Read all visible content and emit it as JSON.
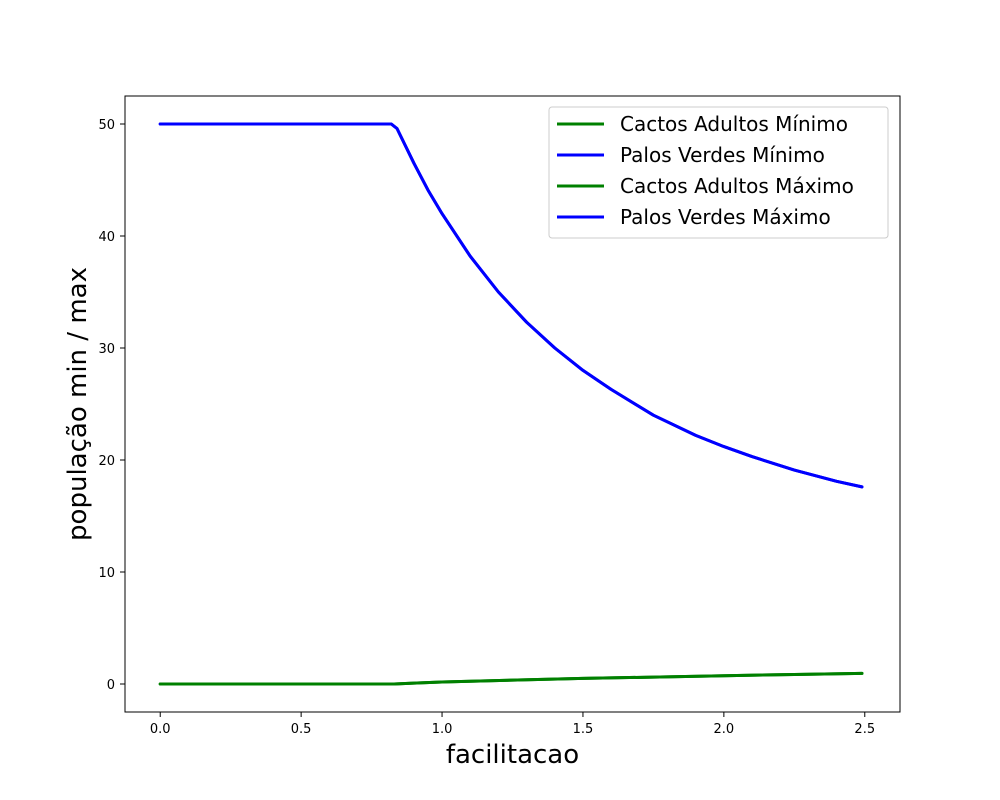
{
  "chart_data": {
    "type": "line",
    "title": "",
    "xlabel": "facilitacao",
    "ylabel": "população min / max",
    "xlim": [
      -0.125,
      2.625
    ],
    "ylim": [
      -2.5,
      52.5
    ],
    "xticks": [
      0.0,
      0.5,
      1.0,
      1.5,
      2.0,
      2.5
    ],
    "xtick_labels": [
      "0.0",
      "0.5",
      "1.0",
      "1.5",
      "2.0",
      "2.5"
    ],
    "yticks": [
      0,
      10,
      20,
      30,
      40,
      50
    ],
    "ytick_labels": [
      "0",
      "10",
      "20",
      "30",
      "40",
      "50"
    ],
    "grid": false,
    "legend_position": "upper right",
    "series": [
      {
        "name": "Cactos Adultos Mínimo",
        "color": "#008000",
        "x": [
          0.0,
          0.5,
          0.83,
          0.9,
          1.0,
          1.25,
          1.5,
          1.75,
          2.0,
          2.25,
          2.49
        ],
        "y": [
          0,
          0,
          0,
          0.08,
          0.18,
          0.35,
          0.5,
          0.62,
          0.74,
          0.85,
          0.95
        ]
      },
      {
        "name": "Palos Verdes Mínimo",
        "color": "#0000ff",
        "x": [
          0.0,
          0.5,
          0.82,
          0.84,
          0.9,
          0.95,
          1.0,
          1.1,
          1.2,
          1.3,
          1.4,
          1.5,
          1.6,
          1.75,
          1.9,
          2.0,
          2.1,
          2.25,
          2.4,
          2.49
        ],
        "y": [
          50,
          50,
          50,
          49.6,
          46.5,
          44.1,
          42.0,
          38.2,
          35.0,
          32.3,
          30.0,
          28.0,
          26.3,
          24.0,
          22.2,
          21.2,
          20.3,
          19.1,
          18.1,
          17.6
        ]
      },
      {
        "name": "Cactos Adultos Máximo",
        "color": "#008000",
        "x": [
          0.0,
          0.5,
          0.83,
          0.9,
          1.0,
          1.25,
          1.5,
          1.75,
          2.0,
          2.25,
          2.49
        ],
        "y": [
          0,
          0,
          0,
          0.08,
          0.18,
          0.35,
          0.5,
          0.62,
          0.74,
          0.85,
          0.95
        ]
      },
      {
        "name": "Palos Verdes Máximo",
        "color": "#0000ff",
        "x": [
          0.0,
          0.5,
          0.82,
          0.84,
          0.9,
          0.95,
          1.0,
          1.1,
          1.2,
          1.3,
          1.4,
          1.5,
          1.6,
          1.75,
          1.9,
          2.0,
          2.1,
          2.25,
          2.4,
          2.49
        ],
        "y": [
          50,
          50,
          50,
          49.6,
          46.5,
          44.1,
          42.0,
          38.2,
          35.0,
          32.3,
          30.0,
          28.0,
          26.3,
          24.0,
          22.2,
          21.2,
          20.3,
          19.1,
          18.1,
          17.6
        ]
      }
    ]
  }
}
